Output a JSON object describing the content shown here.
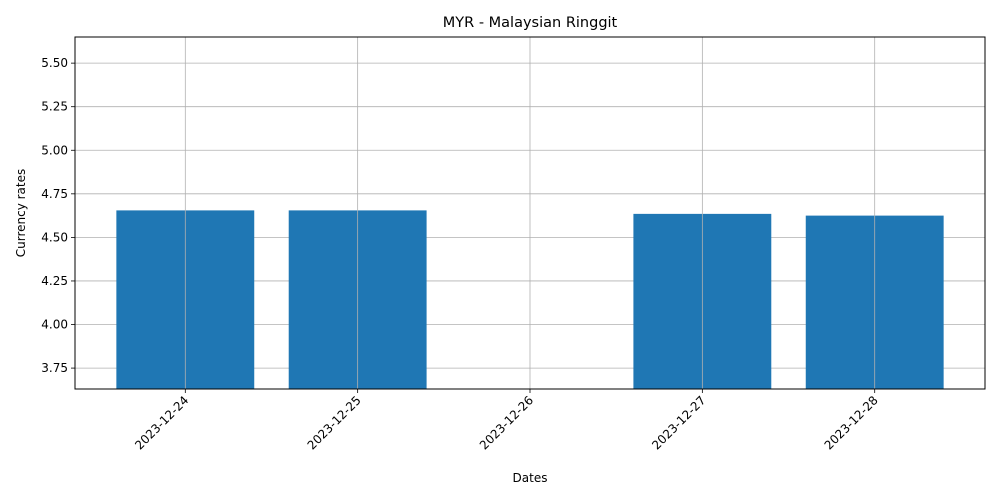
{
  "chart_data": {
    "type": "bar",
    "title": "MYR - Malaysian Ringgit",
    "xlabel": "Dates",
    "ylabel": "Currency rates",
    "categories": [
      "2023-12-24",
      "2023-12-25",
      "2023-12-26",
      "2023-12-27",
      "2023-12-28"
    ],
    "values": [
      4.655,
      4.655,
      null,
      4.635,
      4.625
    ],
    "ylim": [
      3.63,
      5.65
    ],
    "yticks": [
      3.75,
      4.0,
      4.25,
      4.5,
      4.75,
      5.0,
      5.25,
      5.5
    ],
    "ytick_labels": [
      "3.75",
      "4.00",
      "4.25",
      "4.50",
      "4.75",
      "5.00",
      "5.25",
      "5.50"
    ],
    "grid": true,
    "bar_color": "#1f77b4",
    "grid_color": "#b0b0b0",
    "xtick_rotation_deg": 45
  }
}
